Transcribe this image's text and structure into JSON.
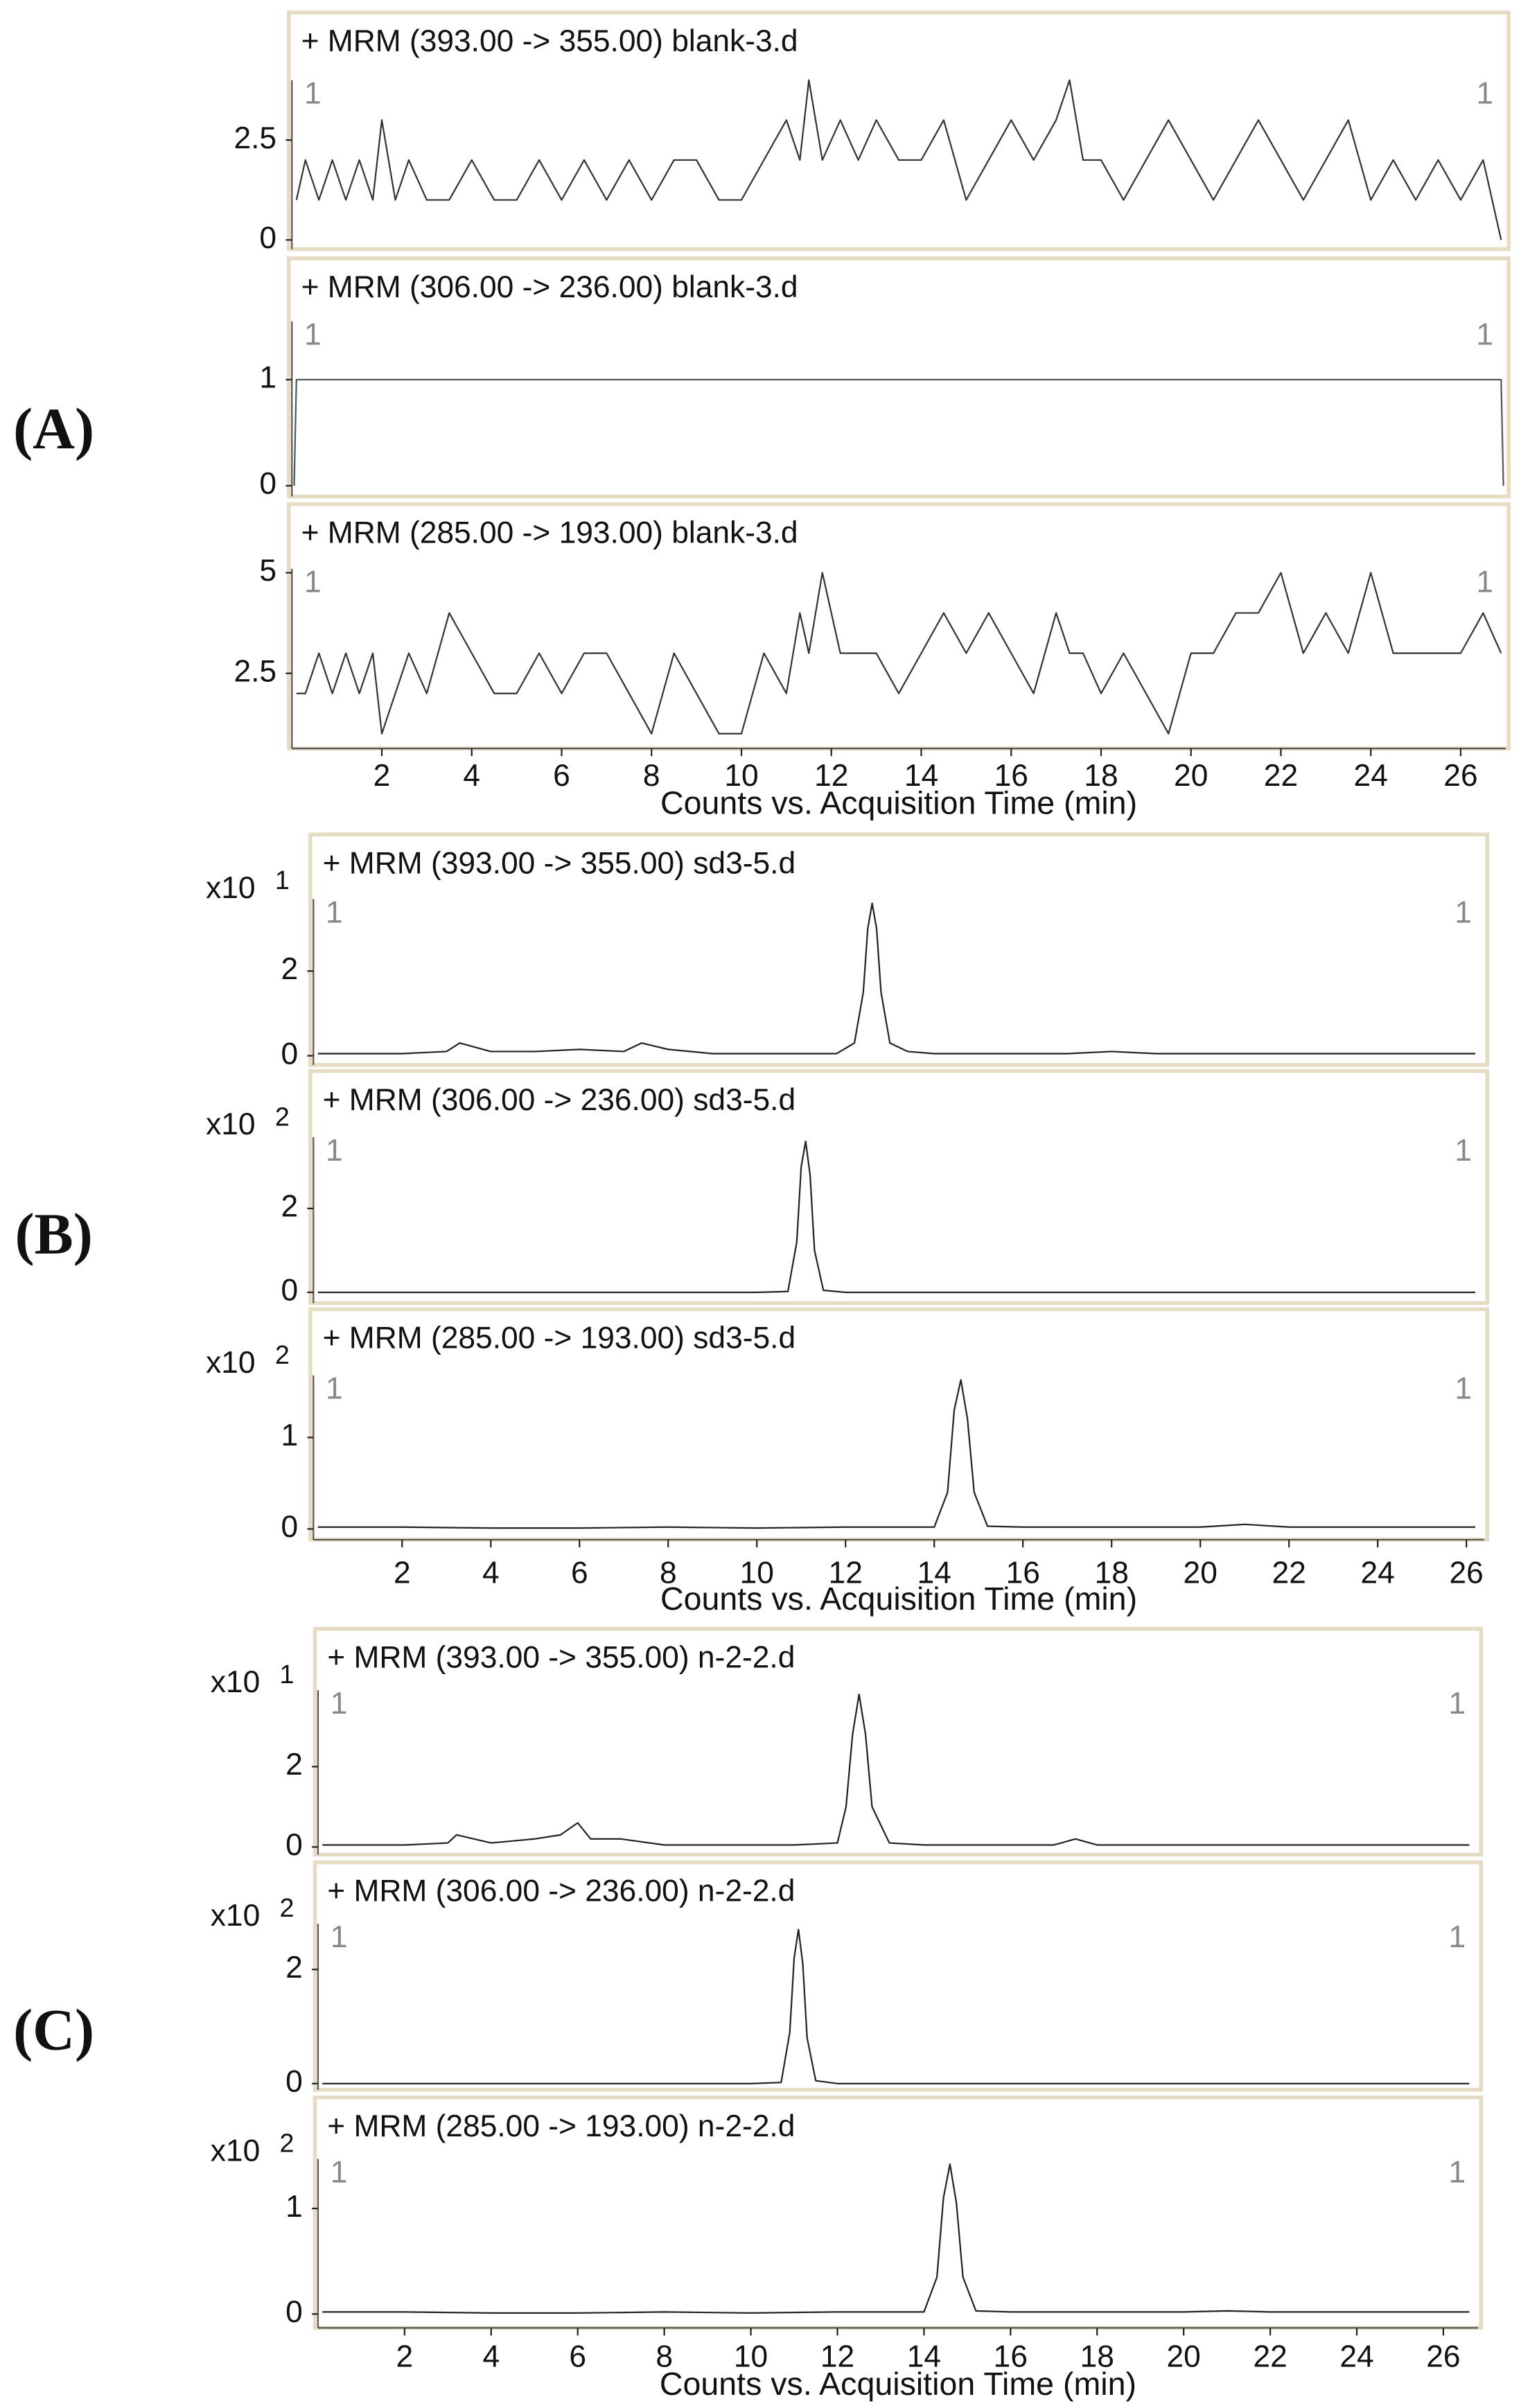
{
  "chart_data": [
    {
      "type": "line",
      "panel_label": "(A)",
      "title": "+ MRM (393.00 -> 355.00) blank-3.d",
      "corner_labels": [
        "1",
        "1"
      ],
      "color": "#333333",
      "x": [
        0.1,
        0.3,
        0.6,
        0.9,
        1.2,
        1.5,
        1.8,
        2.0,
        2.3,
        2.6,
        3.0,
        3.5,
        4.0,
        4.5,
        5.0,
        5.5,
        6.0,
        6.5,
        7.0,
        7.5,
        8.0,
        8.5,
        9.0,
        9.5,
        10.0,
        10.5,
        11.0,
        11.3,
        11.5,
        11.8,
        12.2,
        12.6,
        13.0,
        13.5,
        14.0,
        14.5,
        15.0,
        15.5,
        16.0,
        16.5,
        17.0,
        17.3,
        17.6,
        18.0,
        18.5,
        19.0,
        19.5,
        20.0,
        20.5,
        21.0,
        21.5,
        22.0,
        22.5,
        23.0,
        23.5,
        24.0,
        24.5,
        25.0,
        25.5,
        26.0,
        26.5,
        26.9
      ],
      "values": [
        1,
        2,
        1,
        2,
        1,
        2,
        1,
        3,
        1,
        2,
        1,
        1,
        2,
        1,
        1,
        2,
        1,
        2,
        1,
        2,
        1,
        2,
        2,
        1,
        1,
        2,
        3,
        2,
        4,
        2,
        3,
        2,
        3,
        2,
        2,
        3,
        1,
        2,
        3,
        2,
        3,
        4,
        2,
        2,
        1,
        2,
        3,
        2,
        1,
        2,
        3,
        2,
        1,
        2,
        3,
        1,
        2,
        1,
        2,
        1,
        2,
        0
      ],
      "xlim": [
        0,
        27
      ],
      "ylim": [
        0,
        4
      ],
      "yticks": [
        0,
        2.5
      ]
    },
    {
      "type": "line",
      "title": "+ MRM (306.00 -> 236.00) blank-3.d",
      "corner_labels": [
        "1",
        "1"
      ],
      "color": "#555555",
      "x": [
        0.05,
        0.1,
        26.9,
        26.95
      ],
      "values": [
        0,
        1,
        1,
        0
      ],
      "xlim": [
        0,
        27
      ],
      "ylim": [
        0,
        1.55
      ],
      "yticks": [
        0,
        1
      ]
    },
    {
      "type": "line",
      "title": "+ MRM (285.00 -> 193.00) blank-3.d",
      "corner_labels": [
        "1",
        "1"
      ],
      "color": "#333333",
      "x": [
        0.1,
        0.3,
        0.6,
        0.9,
        1.2,
        1.5,
        1.8,
        2.0,
        2.3,
        2.6,
        3.0,
        3.5,
        4.0,
        4.5,
        5.0,
        5.5,
        6.0,
        6.5,
        7.0,
        7.5,
        8.0,
        8.5,
        9.0,
        9.5,
        10.0,
        10.5,
        11.0,
        11.3,
        11.5,
        11.8,
        12.2,
        12.6,
        13.0,
        13.5,
        14.0,
        14.5,
        15.0,
        15.5,
        16.0,
        16.5,
        17.0,
        17.3,
        17.6,
        18.0,
        18.5,
        19.0,
        19.5,
        20.0,
        20.5,
        21.0,
        21.5,
        22.0,
        22.5,
        23.0,
        23.5,
        24.0,
        24.5,
        25.0,
        25.5,
        26.0,
        26.5,
        26.9
      ],
      "values": [
        2,
        2,
        3,
        2,
        3,
        2,
        3,
        1,
        2,
        3,
        2,
        4,
        3,
        2,
        2,
        3,
        2,
        3,
        3,
        2,
        1,
        3,
        2,
        1,
        1,
        3,
        2,
        4,
        3,
        5,
        3,
        3,
        3,
        2,
        3,
        4,
        3,
        4,
        3,
        2,
        4,
        3,
        3,
        2,
        3,
        2,
        1,
        3,
        3,
        4,
        4,
        5,
        3,
        4,
        3,
        5,
        3,
        3,
        3,
        3,
        4,
        3
      ],
      "xlim": [
        0,
        27
      ],
      "ylim": [
        0.9,
        5.1
      ],
      "yticks": [
        2.5,
        5
      ],
      "xticks": [
        2,
        4,
        6,
        8,
        10,
        12,
        14,
        16,
        18,
        20,
        22,
        24,
        26
      ],
      "xlabel": "Counts vs. Acquisition Time (min)"
    },
    {
      "type": "line",
      "panel_label": "(B)",
      "title": "+ MRM (393.00 -> 355.00) sd3-5.d",
      "corner_labels": [
        "1",
        "1"
      ],
      "y_multiplier": "x10",
      "y_exponent": "1",
      "color": "#222222",
      "x": [
        0.1,
        1,
        2,
        3,
        3.3,
        4,
        5,
        6,
        7,
        7.4,
        8,
        9,
        10,
        11,
        11.8,
        12.2,
        12.4,
        12.5,
        12.6,
        12.7,
        12.8,
        13,
        13.4,
        14,
        15,
        16,
        17,
        18,
        19,
        20,
        21,
        22,
        23,
        24,
        25,
        26.2
      ],
      "values": [
        0.05,
        0.05,
        0.05,
        0.1,
        0.3,
        0.1,
        0.1,
        0.15,
        0.1,
        0.3,
        0.15,
        0.05,
        0.05,
        0.05,
        0.05,
        0.3,
        1.5,
        3.0,
        3.6,
        3.0,
        1.5,
        0.3,
        0.1,
        0.05,
        0.05,
        0.05,
        0.05,
        0.1,
        0.05,
        0.05,
        0.05,
        0.05,
        0.05,
        0.05,
        0.05,
        0.05
      ],
      "xlim": [
        0,
        26.4
      ],
      "ylim": [
        0,
        3.7
      ],
      "yticks": [
        0,
        2
      ]
    },
    {
      "type": "line",
      "title": "+ MRM (306.00 -> 236.00) sd3-5.d",
      "corner_labels": [
        "1",
        "1"
      ],
      "y_multiplier": "x10",
      "y_exponent": "2",
      "color": "#222222",
      "x": [
        0.1,
        2,
        4,
        6,
        8,
        10,
        10.7,
        10.9,
        11.0,
        11.1,
        11.2,
        11.3,
        11.5,
        12,
        14,
        16,
        18,
        20,
        22,
        24,
        26.2
      ],
      "values": [
        0,
        0,
        0,
        0,
        0,
        0,
        0.02,
        1.2,
        3.0,
        3.6,
        2.8,
        1.0,
        0.05,
        0,
        0,
        0,
        0,
        0,
        0,
        0,
        0
      ],
      "xlim": [
        0,
        26.4
      ],
      "ylim": [
        0,
        3.7
      ],
      "yticks": [
        0,
        2
      ]
    },
    {
      "type": "line",
      "title": "+ MRM (285.00 -> 193.00) sd3-5.d",
      "corner_labels": [
        "1",
        "1"
      ],
      "y_multiplier": "x10",
      "y_exponent": "2",
      "color": "#222222",
      "x": [
        0.1,
        2,
        4,
        6,
        8,
        10,
        12,
        14,
        14.3,
        14.45,
        14.6,
        14.75,
        14.9,
        15.2,
        16,
        18,
        20,
        21,
        22,
        24,
        26.2
      ],
      "values": [
        0.02,
        0.02,
        0.01,
        0.01,
        0.02,
        0.01,
        0.02,
        0.02,
        0.4,
        1.3,
        1.63,
        1.2,
        0.4,
        0.03,
        0.02,
        0.02,
        0.02,
        0.05,
        0.02,
        0.02,
        0.02
      ],
      "xlim": [
        0,
        26.4
      ],
      "ylim": [
        0,
        1.68
      ],
      "yticks": [
        0,
        1
      ],
      "xticks": [
        2,
        4,
        6,
        8,
        10,
        12,
        14,
        16,
        18,
        20,
        22,
        24,
        26
      ],
      "xlabel": "Counts vs. Acquisition Time (min)"
    },
    {
      "type": "line",
      "panel_label": "(C)",
      "title": "+ MRM (393.00 -> 355.00) n-2-2.d",
      "corner_labels": [
        "1",
        "1"
      ],
      "y_multiplier": "x10",
      "y_exponent": "1",
      "color": "#222222",
      "x": [
        0.1,
        1,
        2,
        3,
        3.2,
        4,
        5,
        5.6,
        6,
        6.3,
        7,
        8,
        9,
        10,
        11,
        12,
        12.2,
        12.35,
        12.5,
        12.65,
        12.8,
        13.2,
        14,
        15,
        16,
        17,
        17.5,
        18,
        19,
        20,
        21,
        22,
        23,
        24,
        25,
        26.6
      ],
      "values": [
        0.05,
        0.05,
        0.05,
        0.1,
        0.3,
        0.1,
        0.2,
        0.3,
        0.6,
        0.2,
        0.2,
        0.05,
        0.05,
        0.05,
        0.05,
        0.1,
        1.0,
        2.8,
        3.8,
        2.8,
        1.0,
        0.1,
        0.05,
        0.05,
        0.05,
        0.05,
        0.2,
        0.05,
        0.05,
        0.05,
        0.05,
        0.05,
        0.05,
        0.05,
        0.05,
        0.05
      ],
      "xlim": [
        0,
        26.8
      ],
      "ylim": [
        0,
        3.9
      ],
      "yticks": [
        0,
        2
      ]
    },
    {
      "type": "line",
      "title": "+ MRM (306.00 -> 236.00) n-2-2.d",
      "corner_labels": [
        "1",
        "1"
      ],
      "y_multiplier": "x10",
      "y_exponent": "2",
      "color": "#222222",
      "x": [
        0.1,
        2,
        4,
        6,
        8,
        10,
        10.7,
        10.9,
        11.0,
        11.1,
        11.2,
        11.3,
        11.5,
        12,
        14,
        16,
        18,
        20,
        22,
        24,
        26.6
      ],
      "values": [
        0,
        0,
        0,
        0,
        0,
        0,
        0.02,
        0.9,
        2.2,
        2.7,
        2.1,
        0.8,
        0.05,
        0,
        0,
        0,
        0,
        0,
        0,
        0,
        0
      ],
      "xlim": [
        0,
        26.8
      ],
      "ylim": [
        0,
        2.8
      ],
      "yticks": [
        0,
        2
      ]
    },
    {
      "type": "line",
      "title": "+ MRM (285.00 -> 193.00) n-2-2.d",
      "corner_labels": [
        "1",
        "1"
      ],
      "y_multiplier": "x10",
      "y_exponent": "2",
      "color": "#222222",
      "x": [
        0.1,
        2,
        4,
        6,
        8,
        10,
        12,
        14,
        14.3,
        14.45,
        14.6,
        14.75,
        14.9,
        15.2,
        16,
        18,
        20,
        21,
        22,
        24,
        26.6
      ],
      "values": [
        0.02,
        0.02,
        0.01,
        0.01,
        0.02,
        0.01,
        0.02,
        0.02,
        0.35,
        1.1,
        1.42,
        1.05,
        0.35,
        0.03,
        0.02,
        0.02,
        0.02,
        0.03,
        0.02,
        0.02,
        0.02
      ],
      "xlim": [
        0,
        26.8
      ],
      "ylim": [
        0,
        1.47
      ],
      "yticks": [
        0,
        1
      ],
      "xticks": [
        2,
        4,
        6,
        8,
        10,
        12,
        14,
        16,
        18,
        20,
        22,
        24,
        26
      ],
      "xlabel": "Counts vs. Acquisition Time (min)"
    }
  ]
}
